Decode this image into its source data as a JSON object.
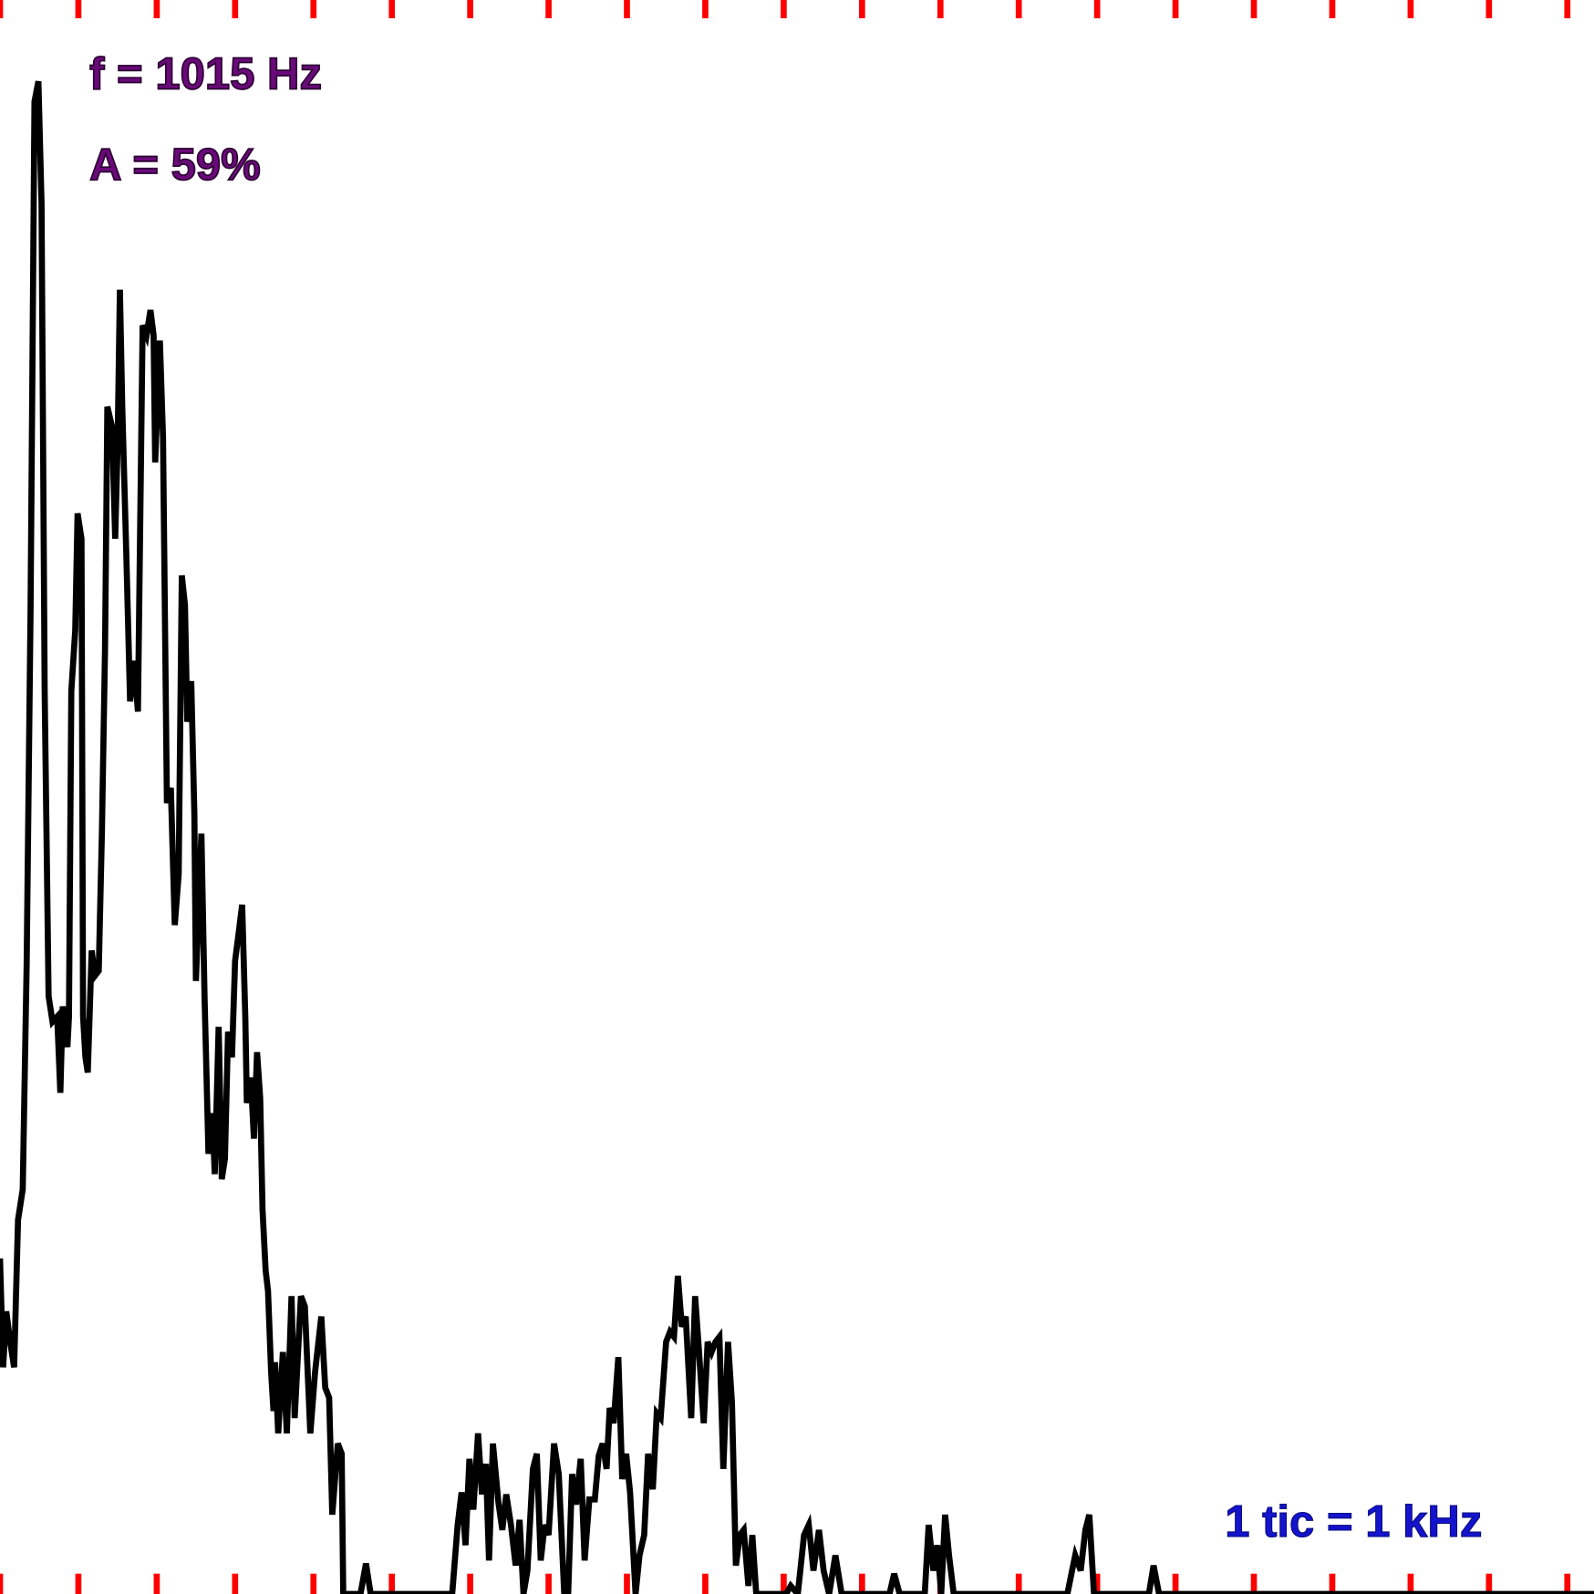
{
  "chart_data": {
    "type": "line",
    "annotations": [
      "f = 1015 Hz",
      "A = 59%",
      "1 tic = 1 kHz"
    ],
    "color": "#000000",
    "tick_color": "#ff0000",
    "xlim": [
      0,
      20.34
    ],
    "ylim": [
      0,
      1568
    ],
    "xticks": [
      0,
      1,
      2,
      3,
      4,
      5,
      6,
      7,
      8,
      9,
      10,
      11,
      12,
      13,
      14,
      15,
      16,
      17,
      18,
      19,
      20
    ],
    "x": [
      0,
      0.04,
      0.08,
      0.13,
      0.18,
      0.23,
      0.29,
      0.34,
      0.39,
      0.44,
      0.49,
      0.53,
      0.57,
      0.62,
      0.67,
      0.73,
      0.77,
      0.8,
      0.86,
      0.88,
      0.91,
      0.96,
      0.99,
      1.04,
      1.06,
      1.09,
      1.12,
      1.17,
      1.21,
      1.26,
      1.3,
      1.34,
      1.37,
      1.43,
      1.47,
      1.5,
      1.53,
      1.56,
      1.61,
      1.66,
      1.71,
      1.76,
      1.82,
      1.87,
      1.92,
      1.96,
      1.98,
      2.04,
      2.08,
      2.13,
      2.18,
      2.23,
      2.28,
      2.32,
      2.36,
      2.39,
      2.44,
      2.48,
      2.5,
      2.57,
      2.61,
      2.66,
      2.71,
      2.74,
      2.79,
      2.83,
      2.87,
      2.91,
      2.96,
      3.0,
      3.05,
      3.09,
      3.13,
      3.15,
      3.2,
      3.24,
      3.28,
      3.32,
      3.35,
      3.39,
      3.42,
      3.46,
      3.49,
      3.51,
      3.55,
      3.61,
      3.66,
      3.72,
      3.76,
      3.84,
      3.89,
      3.96,
      4.02,
      4.1,
      4.15,
      4.2,
      4.24,
      4.31,
      4.36,
      4.38,
      4.44,
      4.6,
      4.67,
      4.73,
      5.77,
      5.84,
      5.89,
      5.94,
      5.99,
      6.04,
      6.1,
      6.15,
      6.2,
      6.24,
      6.29,
      6.36,
      6.41,
      6.46,
      6.52,
      6.58,
      6.63,
      6.68,
      6.73,
      6.8,
      6.85,
      6.9,
      6.95,
      7.0,
      7.07,
      7.13,
      7.2,
      7.25,
      7.3,
      7.35,
      7.41,
      7.46,
      7.52,
      7.59,
      7.64,
      7.69,
      7.74,
      7.78,
      7.83,
      7.89,
      7.94,
      7.99,
      8.04,
      8.11,
      8.16,
      8.22,
      8.27,
      8.33,
      8.38,
      8.43,
      8.5,
      8.55,
      8.6,
      8.65,
      8.7,
      8.75,
      8.82,
      8.87,
      8.92,
      8.98,
      9.03,
      9.08,
      9.13,
      9.18,
      9.23,
      9.29,
      9.34,
      9.39,
      9.44,
      9.49,
      9.55,
      9.6,
      9.65,
      10.03,
      10.09,
      10.18,
      10.26,
      10.32,
      10.38,
      10.45,
      10.51,
      10.58,
      10.66,
      10.74,
      11.35,
      11.41,
      11.48,
      11.8,
      11.85,
      11.91,
      11.96,
      12.01,
      12.06,
      12.11,
      12.17,
      13.62,
      13.68,
      13.72,
      13.79,
      13.85,
      13.9,
      13.96,
      14.66,
      14.72,
      14.79,
      20.34
    ],
    "values": [
      330,
      223,
      278,
      248,
      223,
      368,
      398,
      618,
      968,
      1468,
      1488,
      1368,
      888,
      588,
      563,
      568,
      493,
      578,
      538,
      568,
      888,
      948,
      1063,
      1038,
      568,
      528,
      513,
      633,
      608,
      613,
      748,
      928,
      1168,
      1148,
      1038,
      1128,
      1283,
      1168,
      1028,
      878,
      918,
      868,
      1248,
      1238,
      1263,
      1238,
      1113,
      1233,
      1138,
      778,
      793,
      658,
      708,
      1002,
      973,
      858,
      898,
      768,
      603,
      748,
      588,
      433,
      473,
      413,
      558,
      408,
      428,
      553,
      528,
      623,
      653,
      678,
      568,
      483,
      508,
      448,
      533,
      488,
      378,
      318,
      298,
      218,
      180,
      228,
      158,
      238,
      158,
      293,
      173,
      293,
      283,
      158,
      218,
      273,
      203,
      193,
      78,
      148,
      138,
      0,
      0,
      0,
      30,
      0,
      0,
      68,
      100,
      48,
      133,
      83,
      158,
      98,
      128,
      33,
      148,
      90,
      63,
      98,
      68,
      28,
      73,
      0,
      23,
      123,
      138,
      33,
      68,
      58,
      148,
      118,
      0,
      0,
      118,
      88,
      133,
      33,
      93,
      93,
      136,
      148,
      123,
      183,
      168,
      233,
      113,
      138,
      100,
      0,
      38,
      58,
      138,
      103,
      178,
      173,
      248,
      258,
      253,
      313,
      263,
      273,
      173,
      293,
      238,
      168,
      248,
      238,
      248,
      253,
      123,
      248,
      188,
      28,
      58,
      63,
      8,
      58,
      0,
      0,
      8,
      0,
      58,
      68,
      23,
      63,
      23,
      0,
      38,
      0,
      0,
      20,
      0,
      0,
      68,
      23,
      48,
      0,
      78,
      38,
      0,
      0,
      23,
      38,
      23,
      63,
      78,
      0,
      0,
      28,
      0,
      0
    ]
  }
}
